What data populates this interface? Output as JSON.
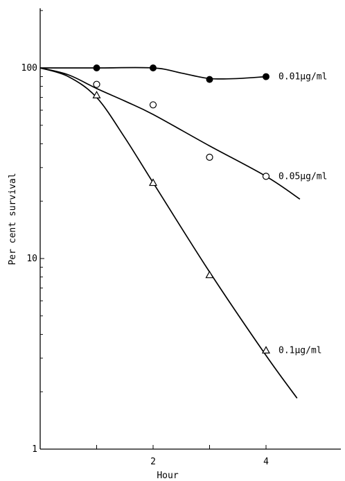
{
  "chart_data": {
    "type": "scatter",
    "title": "",
    "xlabel": "Hour",
    "ylabel": "Per cent survival",
    "yscale": "log",
    "xlim": [
      0,
      5.3
    ],
    "ylim": [
      1,
      200
    ],
    "grid": false,
    "x_ticks": [
      {
        "value": 1,
        "label": ""
      },
      {
        "value": 2,
        "label": "2"
      },
      {
        "value": 3,
        "label": ""
      },
      {
        "value": 4,
        "label": "4"
      }
    ],
    "y_ticks": [
      {
        "value": 1,
        "label": "1"
      },
      {
        "value": 10,
        "label": "10"
      },
      {
        "value": 100,
        "label": "100"
      }
    ],
    "series": [
      {
        "name": "0.01µg/ml",
        "marker": "filled-circle",
        "points": [
          [
            1,
            100
          ],
          [
            2,
            100
          ],
          [
            3,
            87
          ],
          [
            4,
            90
          ]
        ],
        "curve": [
          [
            0,
            100
          ],
          [
            1,
            100
          ],
          [
            2,
            100
          ],
          [
            2.5,
            94
          ],
          [
            3,
            88
          ],
          [
            3.5,
            88
          ],
          [
            4,
            90
          ]
        ]
      },
      {
        "name": "0.05µg/ml",
        "marker": "open-circle",
        "points": [
          [
            1,
            82
          ],
          [
            2,
            64
          ],
          [
            3,
            34
          ],
          [
            4,
            27
          ]
        ],
        "curve": [
          [
            0,
            100
          ],
          [
            0.5,
            92
          ],
          [
            1,
            78
          ],
          [
            1.5,
            67
          ],
          [
            2,
            57
          ],
          [
            3,
            39
          ],
          [
            4,
            27
          ],
          [
            4.6,
            20.5
          ]
        ]
      },
      {
        "name": "0.1µg/ml",
        "marker": "open-triangle",
        "points": [
          [
            1,
            72
          ],
          [
            2,
            25
          ],
          [
            3,
            8.2
          ],
          [
            4,
            3.3
          ]
        ],
        "curve": [
          [
            0,
            100
          ],
          [
            0.5,
            90
          ],
          [
            1,
            70
          ],
          [
            1.5,
            43
          ],
          [
            2,
            25
          ],
          [
            3,
            8.5
          ],
          [
            4,
            3.1
          ],
          [
            4.55,
            1.85
          ]
        ]
      }
    ]
  }
}
